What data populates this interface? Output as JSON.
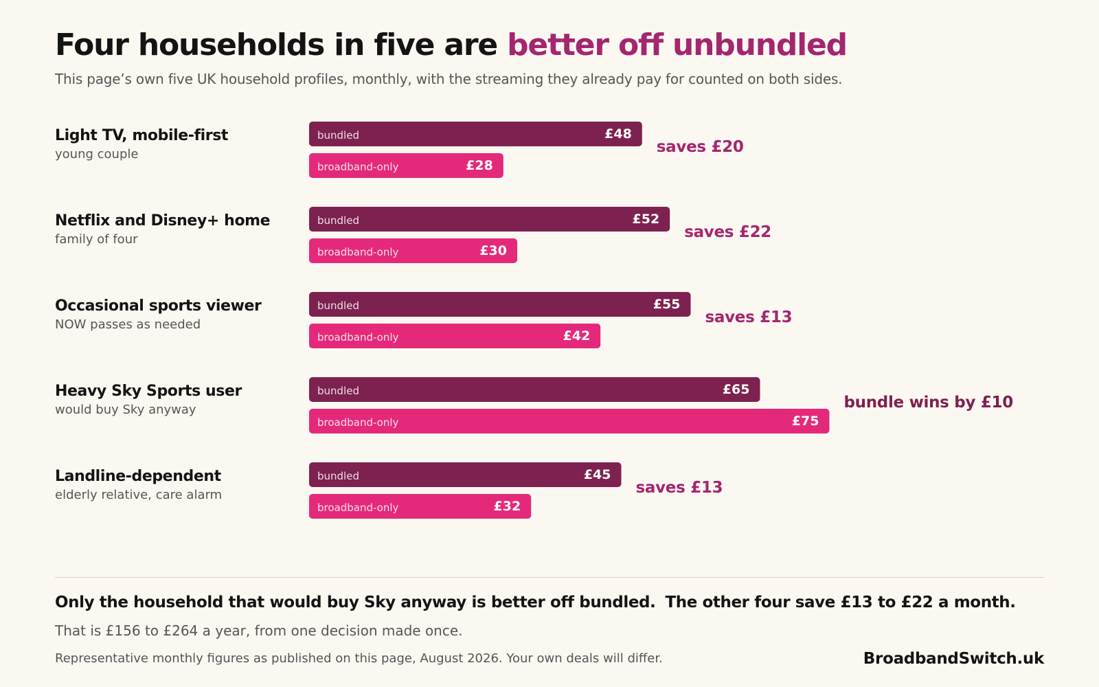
{
  "headline": {
    "lead": "Four households in five are",
    "accent": "better off unbundled"
  },
  "subtitle": "This page’s own five UK household profiles, monthly, with the streaming they already pay for counted on both sides.",
  "colors": {
    "bundled": "#7D2150",
    "broadband_only": "#E5297A",
    "saves_text": "#A3266E",
    "bundle_wins_text": "#7D2150"
  },
  "chart_data": {
    "type": "bar",
    "orientation": "horizontal",
    "unit": "£ per month",
    "categories": [
      {
        "name": "Light TV, mobile-first",
        "detail": "young couple",
        "verdict": "saves £20"
      },
      {
        "name": "Netflix and Disney+ home",
        "detail": "family of four",
        "verdict": "saves £22"
      },
      {
        "name": "Occasional sports viewer",
        "detail": "NOW passes as needed",
        "verdict": "saves £13"
      },
      {
        "name": "Heavy Sky Sports user",
        "detail": "would buy Sky anyway",
        "verdict": "bundle wins by £10"
      },
      {
        "name": "Landline-dependent",
        "detail": "elderly relative, care alarm",
        "verdict": "saves £13"
      }
    ],
    "series": [
      {
        "name": "bundled",
        "values": [
          48,
          52,
          55,
          65,
          45
        ],
        "labels": [
          "£48",
          "£52",
          "£55",
          "£65",
          "£45"
        ]
      },
      {
        "name": "broadband-only",
        "values": [
          28,
          30,
          42,
          75,
          32
        ],
        "labels": [
          "£28",
          "£30",
          "£42",
          "£75",
          "£32"
        ]
      }
    ],
    "xlim": [
      0,
      75
    ],
    "grid": false,
    "legend": "inline"
  },
  "footer": {
    "conclusion_a": "Only the household that would buy Sky anyway is better off bundled.",
    "conclusion_b": "The other four save £13 to £22 a month.",
    "yearly": "That is £156 to £264 a year, from one decision made once.",
    "note": "Representative monthly figures as published on this page, August 2026.  Your own deals will differ.",
    "brand": "BroadbandSwitch.uk"
  }
}
